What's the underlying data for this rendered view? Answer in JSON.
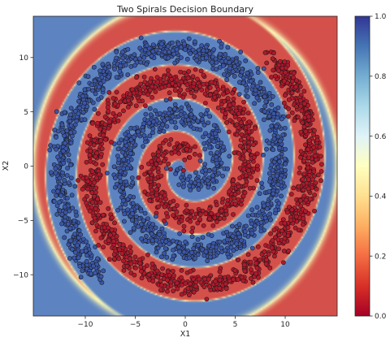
{
  "chart_data": {
    "type": "scatter",
    "title": "Two Spirals Decision Boundary",
    "xlabel": "X1",
    "ylabel": "X2",
    "xlim": [
      -15.2,
      15.2
    ],
    "ylim": [
      -13.8,
      13.8
    ],
    "xticks": [
      -10,
      -5,
      0,
      5,
      10
    ],
    "yticks": [
      -10,
      -5,
      0,
      5,
      10
    ],
    "grid": false,
    "background": "decision boundary heatmap",
    "colormap": "RdYlBu",
    "colorbar": {
      "ticks": [
        "0.0",
        "0.2",
        "0.4",
        "0.6",
        "0.8",
        "1.0"
      ],
      "range": [
        0.0,
        1.0
      ]
    },
    "series": [
      {
        "class_value": 0,
        "color": "#b2182b",
        "turns": 2.1,
        "max_radius": 13.0,
        "phase": 0.0
      },
      {
        "class_value": 1,
        "color": "#3a56a8",
        "turns": 2.1,
        "max_radius": 13.0,
        "phase": 3.14159
      }
    ],
    "points_per_series": 1500,
    "point_noise": 0.55,
    "region_colors": {
      "class0": "#d4504a",
      "class1": "#5d84c1",
      "boundary": "#fbf6b5"
    }
  }
}
